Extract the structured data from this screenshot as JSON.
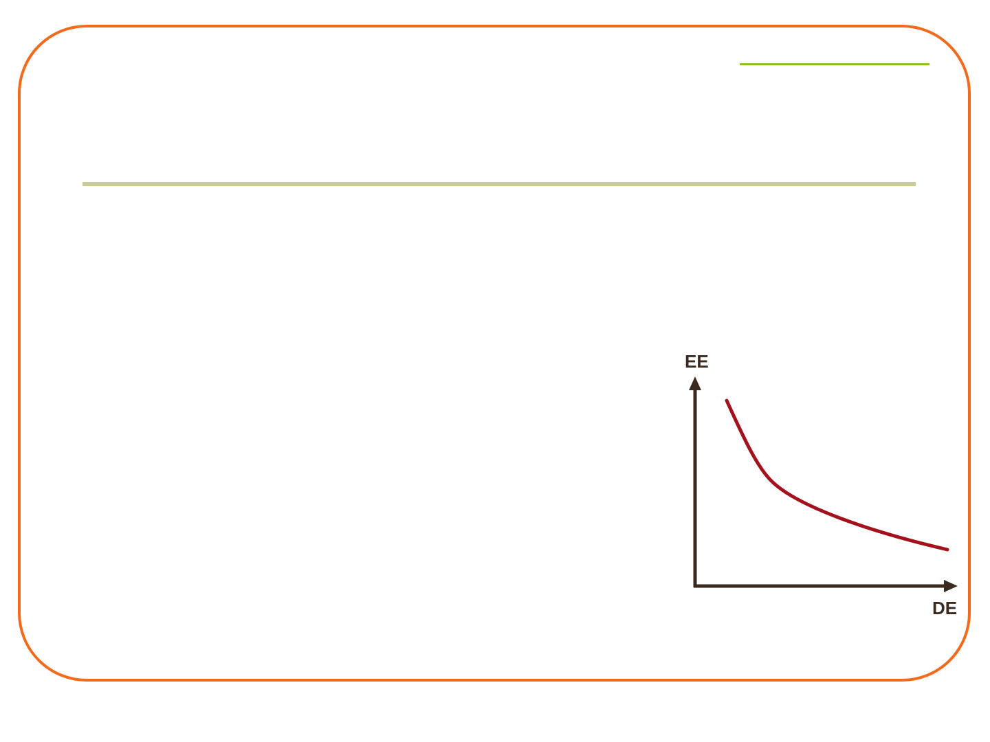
{
  "slide": {
    "frame_color": "#f26a1b",
    "accent_line_color": "#8dc21f",
    "title_rule_color": "#c8cc96"
  },
  "diagram": {
    "y_axis_label": "EE",
    "x_axis_label": "DE",
    "axis_color": "#3a2a20",
    "curve_color": "#a3121c",
    "curve_shape": "decreasing-convex"
  }
}
